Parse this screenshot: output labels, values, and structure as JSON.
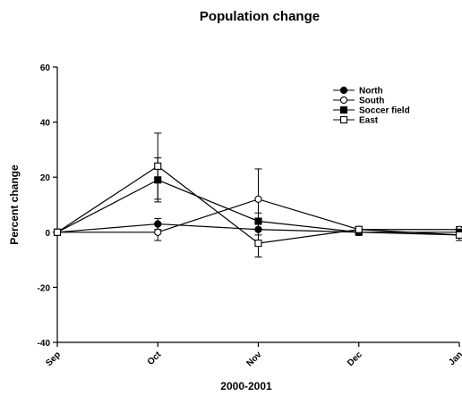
{
  "chart_data": {
    "type": "line",
    "title": "Population change",
    "xlabel": "2000-2001",
    "ylabel": "Percent change",
    "categories": [
      "Sep",
      "Oct",
      "Nov",
      "Dec",
      "Jan"
    ],
    "ylim": [
      -40,
      60
    ],
    "yticks": [
      "60",
      "40",
      "20",
      "0",
      "-20",
      "-40"
    ],
    "ytick_values": [
      60,
      40,
      20,
      0,
      -20,
      -40
    ],
    "grid": false,
    "legend_position": "top-right",
    "series": [
      {
        "name": "North",
        "marker": "filled-circle",
        "values": [
          0,
          3,
          1,
          0,
          -1
        ],
        "err": [
          0,
          2,
          2,
          1,
          1
        ]
      },
      {
        "name": "South",
        "marker": "open-circle",
        "values": [
          0,
          0,
          12,
          1,
          1
        ],
        "err": [
          0,
          3,
          11,
          1,
          1
        ]
      },
      {
        "name": "Soccer field",
        "marker": "filled-square",
        "values": [
          0,
          19,
          4,
          0,
          0
        ],
        "err": [
          0,
          8,
          3,
          1,
          1
        ]
      },
      {
        "name": "East",
        "marker": "open-square",
        "values": [
          0,
          24,
          -4,
          1,
          -1
        ],
        "err": [
          0,
          12,
          5,
          1,
          2
        ]
      }
    ]
  }
}
